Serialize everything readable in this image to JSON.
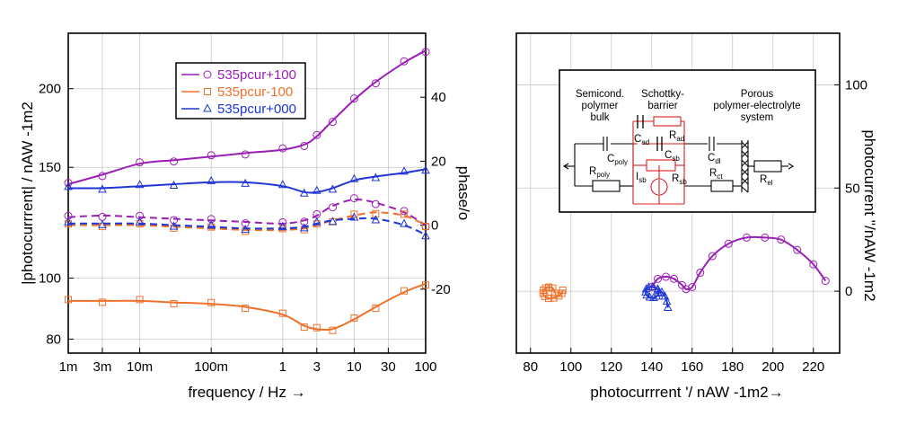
{
  "chart_data": [
    {
      "type": "line",
      "subtype": "bode",
      "xscale": "log",
      "xlabel": "frequency / Hz →",
      "ylabel_left": "|photocurrrent| / nAW -1m2",
      "ylabel_right": "phase/o",
      "xlim": [
        1,
        100000
      ],
      "ylim_left": [
        76,
        245
      ],
      "ylim_right": [
        -40,
        60
      ],
      "x_ticks": [
        {
          "v": 1,
          "label": "1m"
        },
        {
          "v": 3,
          "label": "3m"
        },
        {
          "v": 10,
          "label": "10m"
        },
        {
          "v": 100,
          "label": "100m"
        },
        {
          "v": 1000,
          "label": "1"
        },
        {
          "v": 3000,
          "label": "3"
        },
        {
          "v": 10000,
          "label": "10"
        },
        {
          "v": 30000,
          "label": "30"
        },
        {
          "v": 100000,
          "label": "100"
        }
      ],
      "y_ticks_left": [
        {
          "v": 80,
          "label": "80"
        },
        {
          "v": 100,
          "label": "100"
        },
        {
          "v": 150,
          "label": "150"
        },
        {
          "v": 200,
          "label": "200"
        }
      ],
      "y_ticks_right": [
        {
          "v": -20,
          "label": "-20"
        },
        {
          "v": 0,
          "label": "0"
        },
        {
          "v": 20,
          "label": "20"
        },
        {
          "v": 40,
          "label": "40"
        }
      ],
      "x_note": "x values in mHz (1 = 1 mHz)",
      "legend": [
        {
          "name": "535pcur+100",
          "color": "#9a1fb5",
          "marker": "circle"
        },
        {
          "name": "535pcur-100",
          "color": "#f0702a",
          "marker": "square"
        },
        {
          "name": "535pcur+000",
          "color": "#1f36d4",
          "marker": "triangle"
        }
      ],
      "series": [
        {
          "name": "535pcur+100 magnitude",
          "axis": "left",
          "color": "#9a1fb5",
          "marker": "circle",
          "x": [
            1,
            3,
            10,
            30,
            100,
            300,
            1000,
            2000,
            3000,
            5000,
            10000,
            20000,
            50000,
            100000
          ],
          "y": [
            141,
            146,
            152,
            154,
            156,
            158,
            160,
            163,
            168,
            178,
            192,
            205,
            220,
            230
          ]
        },
        {
          "name": "535pcur+000 magnitude",
          "axis": "left",
          "color": "#1f36d4",
          "marker": "triangle",
          "x": [
            1,
            3,
            10,
            30,
            100,
            300,
            1000,
            2000,
            3000,
            5000,
            10000,
            20000,
            50000,
            100000
          ],
          "y": [
            139,
            139,
            140,
            141,
            142,
            142,
            140,
            137,
            137,
            139,
            143,
            145,
            147,
            149
          ]
        },
        {
          "name": "535pcur-100 magnitude",
          "axis": "left",
          "color": "#f0702a",
          "marker": "square",
          "x": [
            1,
            3,
            10,
            30,
            100,
            300,
            1000,
            2000,
            3000,
            5000,
            10000,
            20000,
            50000,
            100000
          ],
          "y": [
            92,
            92,
            92,
            91.5,
            91,
            90,
            87.5,
            84,
            83,
            83,
            86,
            90,
            95,
            98
          ]
        },
        {
          "name": "535pcur+100 phase",
          "axis": "right",
          "dashed": true,
          "color": "#9a1fb5",
          "marker": "circle",
          "x": [
            1,
            3,
            10,
            30,
            100,
            300,
            1000,
            2000,
            3000,
            5000,
            10000,
            20000,
            50000,
            100000
          ],
          "y": [
            2.5,
            3,
            2.5,
            2,
            1.5,
            1,
            0.5,
            1.5,
            3,
            6,
            8,
            7,
            4,
            0
          ]
        },
        {
          "name": "535pcur-100 phase",
          "axis": "right",
          "dashed": true,
          "color": "#f0702a",
          "marker": "square",
          "x": [
            1,
            3,
            10,
            30,
            100,
            300,
            1000,
            2000,
            3000,
            5000,
            10000,
            20000,
            50000,
            100000
          ],
          "y": [
            0,
            0,
            0,
            -0.5,
            -1,
            -1.5,
            -1.5,
            -1,
            0,
            1.5,
            3,
            4,
            3,
            0
          ]
        },
        {
          "name": "535pcur+000 phase",
          "axis": "right",
          "dashed": true,
          "color": "#1f36d4",
          "marker": "triangle",
          "x": [
            1,
            3,
            10,
            30,
            100,
            300,
            1000,
            2000,
            3000,
            5000,
            10000,
            20000,
            50000,
            100000
          ],
          "y": [
            0.5,
            0.5,
            0.5,
            0,
            -0.5,
            -1,
            -1,
            -0.5,
            0.5,
            1.5,
            2,
            2,
            0,
            -3
          ]
        }
      ]
    },
    {
      "type": "scatter",
      "subtype": "nyquist",
      "xlabel": "photocurrrent '/ nAW -1m2→",
      "ylabel": "photocurrent ''/nAW -1m2",
      "xlim": [
        73,
        233
      ],
      "ylim": [
        -30,
        125
      ],
      "x_ticks": [
        80,
        100,
        120,
        140,
        160,
        180,
        200,
        220
      ],
      "y_ticks": [
        0,
        50,
        100
      ],
      "series": [
        {
          "name": "535pcur+100",
          "color": "#9a1fb5",
          "marker": "circle",
          "x": [
            140,
            143,
            147,
            151,
            155,
            157,
            160,
            164,
            170,
            178,
            187,
            196,
            204,
            212,
            220,
            226
          ],
          "y": [
            2,
            6,
            7,
            6,
            3,
            1,
            2,
            9,
            17,
            23,
            26,
            26,
            25,
            20,
            13,
            5
          ]
        },
        {
          "name": "535pcur-100",
          "color": "#f0702a",
          "marker": "square",
          "x": [
            92,
            91,
            89,
            87.5,
            86.5,
            86.2,
            87,
            89,
            91.5,
            94,
            95.5,
            96
          ],
          "y": [
            -1,
            1.5,
            2,
            1.5,
            0.5,
            -1,
            -2.5,
            -3.5,
            -3.3,
            -2.3,
            -1,
            0.5
          ]
        },
        {
          "name": "535pcur+000",
          "color": "#1f36d4",
          "marker": "triangle",
          "x": [
            148,
            147.5,
            146.5,
            145,
            143,
            140.5,
            138.5,
            137.3,
            137,
            137.5,
            139,
            141,
            142.5,
            143.3,
            143
          ],
          "y": [
            -8,
            -5,
            -2.5,
            -0.5,
            1,
            2,
            2,
            1,
            -0.5,
            -2,
            -3,
            -3.2,
            -2.5,
            -1,
            0.5
          ]
        }
      ],
      "inset": {
        "headers": [
          "Semicond.",
          "polymer",
          "bulk",
          "Schottky-",
          "barrier",
          "Porous",
          "polymer-electrolyte",
          "system"
        ],
        "labels": [
          {
            "id": "cpoly",
            "main": "C",
            "sub": "poly"
          },
          {
            "id": "rpoly",
            "main": "R",
            "sub": "poly"
          },
          {
            "id": "cad",
            "main": "C",
            "sub": "ad"
          },
          {
            "id": "rad",
            "main": "R",
            "sub": "ad"
          },
          {
            "id": "csb",
            "main": "C",
            "sub": "sb"
          },
          {
            "id": "isb",
            "main": "I",
            "sub": "sb"
          },
          {
            "id": "rsb",
            "main": "R",
            "sub": "sb"
          },
          {
            "id": "cdl",
            "main": "C",
            "sub": "dl"
          },
          {
            "id": "rct",
            "main": "R",
            "sub": "ct"
          },
          {
            "id": "rel",
            "main": "R",
            "sub": "el"
          }
        ]
      }
    }
  ]
}
